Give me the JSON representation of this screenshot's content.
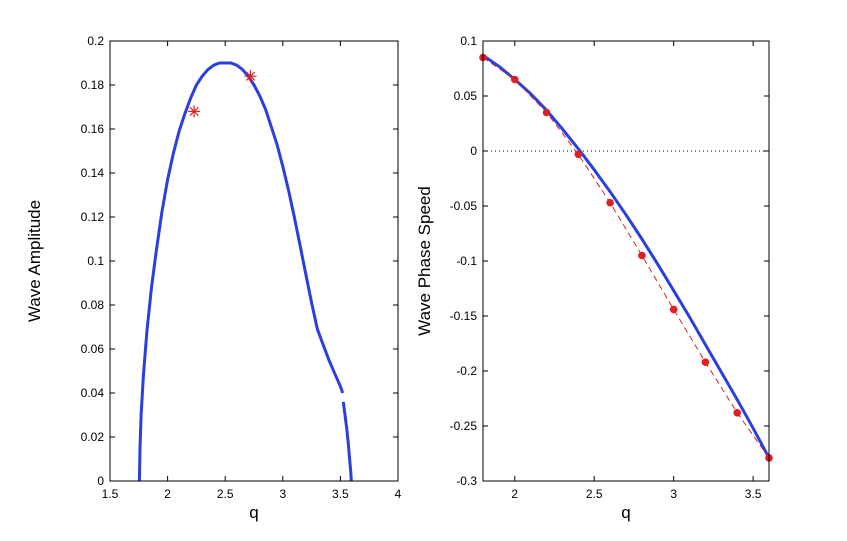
{
  "chart_data": [
    {
      "type": "line",
      "xlabel": "q",
      "ylabel": "Wave Amplitude",
      "xlim": [
        1.5,
        4
      ],
      "ylim": [
        0,
        0.2
      ],
      "xticks": [
        "1.5",
        "2",
        "2.5",
        "3",
        "3.5",
        "4"
      ],
      "yticks": [
        "0",
        "0.02",
        "0.04",
        "0.06",
        "0.08",
        "0.1",
        "0.12",
        "0.14",
        "0.16",
        "0.18",
        "0.2"
      ],
      "grid": false,
      "colors": {
        "curve": "#2a3fe0",
        "markers": "#e02020"
      },
      "series": [
        {
          "style": "solid",
          "x": [
            1.755,
            1.76,
            1.77,
            1.79,
            1.82,
            1.86,
            1.9,
            1.95,
            2.0,
            2.05,
            2.1,
            2.15,
            2.2,
            2.25,
            2.3,
            2.35,
            2.4,
            2.45,
            2.5,
            2.55,
            2.6,
            2.65,
            2.7,
            2.75,
            2.8,
            2.85,
            2.9,
            2.95,
            3.0,
            3.05,
            3.1,
            3.15,
            3.2,
            3.25,
            3.3,
            3.35,
            3.4,
            3.45,
            3.5,
            3.52
          ],
          "y": [
            0.0,
            0.015,
            0.03,
            0.048,
            0.068,
            0.088,
            0.104,
            0.122,
            0.137,
            0.149,
            0.159,
            0.167,
            0.174,
            0.18,
            0.184,
            0.187,
            0.189,
            0.19,
            0.19,
            0.19,
            0.189,
            0.187,
            0.184,
            0.18,
            0.175,
            0.169,
            0.161,
            0.153,
            0.143,
            0.132,
            0.12,
            0.107,
            0.094,
            0.081,
            0.069,
            0.062,
            0.055,
            0.049,
            0.043,
            0.04
          ]
        },
        {
          "style": "solid",
          "x": [
            3.525,
            3.54,
            3.555,
            3.57,
            3.58,
            3.59,
            3.595
          ],
          "y": [
            0.036,
            0.03,
            0.024,
            0.016,
            0.01,
            0.004,
            0.0
          ]
        },
        {
          "style": "marker-star",
          "x": [
            2.23,
            2.72
          ],
          "y": [
            0.168,
            0.184
          ]
        }
      ]
    },
    {
      "type": "line",
      "xlabel": "q",
      "ylabel": "Wave Phase Speed",
      "xlim": [
        1.8,
        3.6
      ],
      "ylim": [
        -0.3,
        0.1
      ],
      "xticks": [
        "2",
        "2.5",
        "3",
        "3.5"
      ],
      "yticks": [
        "-0.3",
        "-0.25",
        "-0.2",
        "-0.15",
        "-0.1",
        "-0.05",
        "0",
        "0.05",
        "0.1"
      ],
      "grid": false,
      "reference_line": {
        "y": 0,
        "style": "dotted"
      },
      "colors": {
        "curve": "#2a3fe0",
        "markers": "#e02020"
      },
      "series": [
        {
          "style": "solid",
          "x": [
            1.8,
            1.9,
            2.0,
            2.1,
            2.2,
            2.3,
            2.4,
            2.5,
            2.6,
            2.7,
            2.8,
            2.9,
            3.0,
            3.1,
            3.2,
            3.3,
            3.4,
            3.5,
            3.6
          ],
          "y": [
            0.087,
            0.077,
            0.065,
            0.052,
            0.037,
            0.02,
            0.002,
            -0.017,
            -0.037,
            -0.058,
            -0.08,
            -0.103,
            -0.127,
            -0.151,
            -0.176,
            -0.201,
            -0.226,
            -0.252,
            -0.279
          ]
        },
        {
          "style": "dashed-marker-dot",
          "x": [
            1.8,
            2.0,
            2.2,
            2.4,
            2.6,
            2.8,
            3.0,
            3.2,
            3.4,
            3.6
          ],
          "y": [
            0.085,
            0.065,
            0.035,
            -0.003,
            -0.047,
            -0.095,
            -0.144,
            -0.192,
            -0.238,
            -0.279
          ]
        }
      ]
    }
  ]
}
